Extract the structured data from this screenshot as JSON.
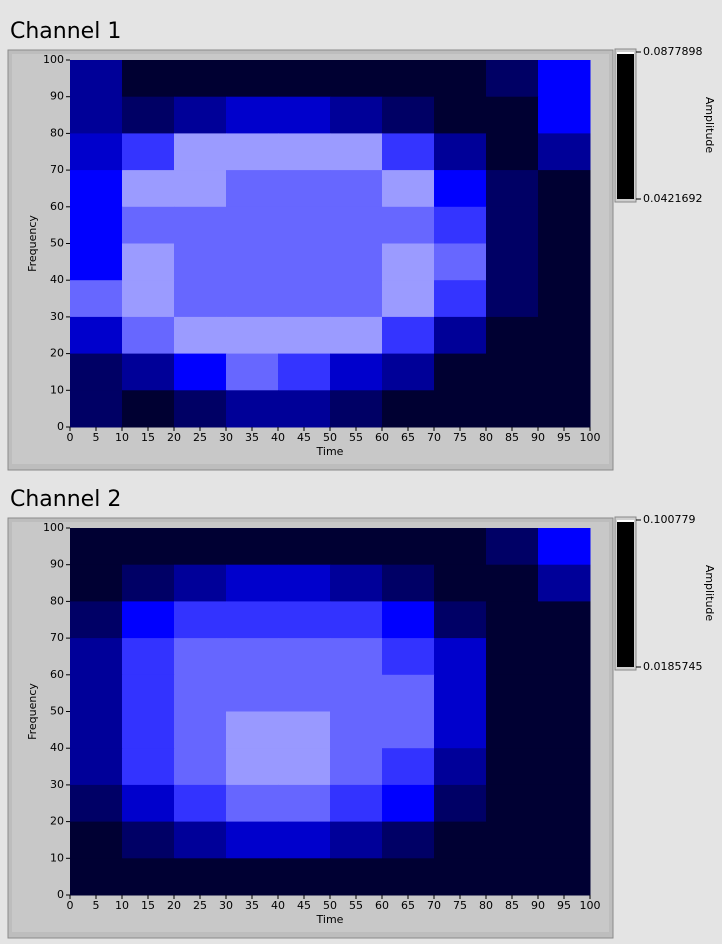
{
  "chart_data": [
    {
      "type": "heatmap",
      "title": "Channel 1",
      "xlabel": "Time",
      "ylabel": "Frequency",
      "colorbar_label": "Amplitude",
      "xlim": [
        0,
        100
      ],
      "ylim": [
        0,
        100
      ],
      "xticks": [
        0,
        5,
        10,
        15,
        20,
        25,
        30,
        35,
        40,
        45,
        50,
        55,
        60,
        65,
        70,
        75,
        80,
        85,
        90,
        95,
        100
      ],
      "yticks": [
        0,
        10,
        20,
        30,
        40,
        50,
        60,
        70,
        80,
        90,
        100
      ],
      "zlim": [
        0.0421692,
        0.0877898
      ],
      "zticks": [
        0.0421692,
        0.0877898
      ],
      "colormap": [
        "#000000",
        "#0000ff",
        "#ffffff"
      ],
      "x": [
        5,
        15,
        25,
        35,
        45,
        55,
        65,
        75,
        85,
        95
      ],
      "y": [
        95,
        85,
        75,
        65,
        55,
        45,
        35,
        25,
        15,
        5
      ],
      "z": [
        [
          0.0558,
          0.0466,
          0.0466,
          0.0466,
          0.0466,
          0.0466,
          0.0466,
          0.0466,
          0.0512,
          0.065
        ],
        [
          0.0558,
          0.0512,
          0.0558,
          0.0604,
          0.0604,
          0.0558,
          0.0512,
          0.0466,
          0.0466,
          0.065
        ],
        [
          0.0604,
          0.0696,
          0.0788,
          0.0788,
          0.0788,
          0.0788,
          0.0696,
          0.0558,
          0.0466,
          0.0558
        ],
        [
          0.065,
          0.0788,
          0.0788,
          0.0742,
          0.0742,
          0.0742,
          0.0788,
          0.065,
          0.0512,
          0.0466
        ],
        [
          0.065,
          0.0742,
          0.0742,
          0.0742,
          0.0742,
          0.0742,
          0.0742,
          0.0696,
          0.0512,
          0.0466
        ],
        [
          0.065,
          0.0788,
          0.0742,
          0.0742,
          0.0742,
          0.0742,
          0.0788,
          0.0742,
          0.0512,
          0.0466
        ],
        [
          0.0742,
          0.0788,
          0.0742,
          0.0742,
          0.0742,
          0.0742,
          0.0788,
          0.0696,
          0.0512,
          0.0466
        ],
        [
          0.0604,
          0.0742,
          0.0788,
          0.0788,
          0.0788,
          0.0788,
          0.0696,
          0.0558,
          0.0466,
          0.0466
        ],
        [
          0.0512,
          0.0558,
          0.065,
          0.0742,
          0.0696,
          0.0604,
          0.0558,
          0.0466,
          0.0466,
          0.0466
        ],
        [
          0.0512,
          0.0466,
          0.0512,
          0.0558,
          0.0558,
          0.0512,
          0.0466,
          0.0466,
          0.0466,
          0.0466
        ]
      ]
    },
    {
      "type": "heatmap",
      "title": "Channel 2",
      "xlabel": "Time",
      "ylabel": "Frequency",
      "colorbar_label": "Amplitude",
      "xlim": [
        0,
        100
      ],
      "ylim": [
        0,
        100
      ],
      "xticks": [
        0,
        5,
        10,
        15,
        20,
        25,
        30,
        35,
        40,
        45,
        50,
        55,
        60,
        65,
        70,
        75,
        80,
        85,
        90,
        95,
        100
      ],
      "yticks": [
        0,
        10,
        20,
        30,
        40,
        50,
        60,
        70,
        80,
        90,
        100
      ],
      "zlim": [
        0.0185745,
        0.100779
      ],
      "zticks": [
        0.0185745,
        0.100779
      ],
      "colormap": [
        "#000000",
        "#0000ff",
        "#ffffff"
      ],
      "x": [
        5,
        15,
        25,
        35,
        45,
        55,
        65,
        75,
        85,
        95
      ],
      "y": [
        95,
        85,
        75,
        65,
        55,
        45,
        35,
        25,
        15,
        5
      ],
      "z": [
        [
          0.0268,
          0.0268,
          0.0268,
          0.0268,
          0.0268,
          0.0268,
          0.0268,
          0.0268,
          0.035,
          0.0597
        ],
        [
          0.0268,
          0.035,
          0.0432,
          0.0514,
          0.0514,
          0.0432,
          0.035,
          0.0268,
          0.0268,
          0.0432
        ],
        [
          0.035,
          0.0597,
          0.0679,
          0.0679,
          0.0679,
          0.0679,
          0.0597,
          0.035,
          0.0268,
          0.0268
        ],
        [
          0.0432,
          0.0679,
          0.0761,
          0.0761,
          0.0761,
          0.0761,
          0.0679,
          0.0514,
          0.0268,
          0.0268
        ],
        [
          0.0432,
          0.0679,
          0.0761,
          0.0761,
          0.0761,
          0.0761,
          0.0761,
          0.0514,
          0.0268,
          0.0268
        ],
        [
          0.0432,
          0.0679,
          0.0761,
          0.0843,
          0.0843,
          0.0761,
          0.0761,
          0.0514,
          0.0268,
          0.0268
        ],
        [
          0.0432,
          0.0679,
          0.0761,
          0.0843,
          0.0843,
          0.0761,
          0.0679,
          0.0432,
          0.0268,
          0.0268
        ],
        [
          0.035,
          0.0514,
          0.0679,
          0.0761,
          0.0761,
          0.0679,
          0.0597,
          0.035,
          0.0268,
          0.0268
        ],
        [
          0.0268,
          0.035,
          0.0432,
          0.0514,
          0.0514,
          0.0432,
          0.035,
          0.0268,
          0.0268,
          0.0268
        ],
        [
          0.0268,
          0.0268,
          0.0268,
          0.0268,
          0.0268,
          0.0268,
          0.0268,
          0.0268,
          0.0268,
          0.0268
        ]
      ]
    }
  ]
}
